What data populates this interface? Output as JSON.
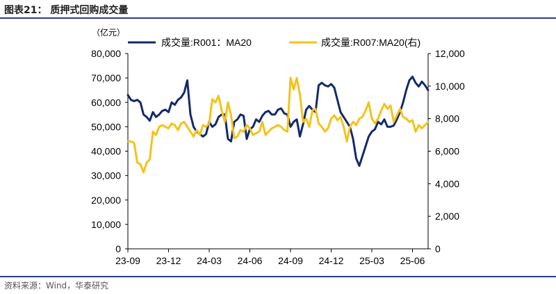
{
  "header": {
    "title": "图表21： 质押式回购成交量"
  },
  "footer": {
    "source": "资料来源：Wind，华泰研究"
  },
  "chart_data": {
    "type": "line",
    "unit_label": "（亿元）",
    "x_tick_labels": [
      "23-09",
      "23-12",
      "24-03",
      "24-06",
      "24-09",
      "24-12",
      "25-03",
      "25-06"
    ],
    "x_tick_index": [
      0,
      13,
      26,
      39,
      52,
      65,
      78,
      91
    ],
    "left_axis": {
      "ylim": [
        0,
        80000
      ],
      "ticks": [
        "0",
        "10,000",
        "20,000",
        "30,000",
        "40,000",
        "50,000",
        "60,000",
        "70,000",
        "80,000"
      ],
      "tick_values": [
        0,
        10000,
        20000,
        30000,
        40000,
        50000,
        60000,
        70000,
        80000
      ]
    },
    "right_axis": {
      "ylim": [
        0,
        12000
      ],
      "ticks": [
        "0",
        "2,000",
        "4,000",
        "6,000",
        "8,000",
        "10,000",
        "12,000"
      ],
      "tick_values": [
        0,
        2000,
        4000,
        6000,
        8000,
        10000,
        12000
      ]
    },
    "legend_position": "top",
    "series": [
      {
        "name": "成交量:R001：MA20",
        "axis": "left",
        "color": "#13296b",
        "values": [
          63000,
          61000,
          60500,
          61000,
          60000,
          55000,
          54000,
          52500,
          56000,
          54000,
          55000,
          56500,
          57000,
          56000,
          60000,
          59000,
          61000,
          62000,
          64000,
          69000,
          55000,
          50000,
          48000,
          47000,
          46000,
          47000,
          52000,
          50000,
          51000,
          54000,
          55000,
          55000,
          45000,
          44000,
          52000,
          53000,
          55000,
          54500,
          45000,
          49000,
          50000,
          53000,
          52000,
          54500,
          56000,
          56500,
          55000,
          55000,
          57000,
          57500,
          55500,
          55000,
          50000,
          52000,
          53000,
          46000,
          51000,
          57000,
          58500,
          57000,
          56000,
          67000,
          68000,
          67000,
          66500,
          67500,
          66000,
          61000,
          56000,
          54000,
          52000,
          50000,
          45000,
          37000,
          34000,
          38000,
          42000,
          46000,
          48000,
          49000,
          52000,
          51000,
          53000,
          50000,
          50000,
          50500,
          53000,
          56000,
          60000,
          65000,
          69000,
          70500,
          68000,
          66500,
          68500,
          67000,
          65000
        ]
      },
      {
        "name": "成交量:R007:MA20(右)",
        "axis": "right",
        "color": "#f5c21a",
        "values": [
          6600,
          6600,
          6500,
          5300,
          5200,
          4700,
          5300,
          5500,
          7200,
          7000,
          7500,
          7600,
          7500,
          7400,
          7700,
          7600,
          7300,
          7700,
          7800,
          7500,
          7200,
          6900,
          7300,
          7000,
          7600,
          7500,
          7700,
          9200,
          9000,
          9400,
          8500,
          7800,
          9000,
          8200,
          6800,
          6900,
          7300,
          7200,
          7600,
          7400,
          7000,
          7100,
          7200,
          7800,
          7000,
          7200,
          7400,
          7500,
          7600,
          7500,
          7300,
          7200,
          10500,
          9800,
          10500,
          9500,
          7800,
          8000,
          7500,
          8500,
          8600,
          7700,
          7500,
          7200,
          7400,
          8000,
          8200,
          7900,
          8100,
          7500,
          6600,
          7500,
          7800,
          7600,
          8000,
          8100,
          8500,
          9000,
          8000,
          7700,
          8000,
          8500,
          8900,
          8600,
          8800,
          7800,
          8200,
          8600,
          8100,
          8000,
          7800,
          7900,
          7200,
          7600,
          7400,
          7600,
          7800
        ]
      }
    ]
  }
}
